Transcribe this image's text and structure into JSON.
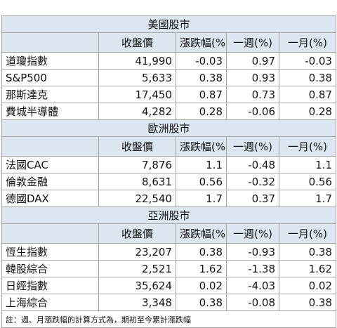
{
  "sections": [
    {
      "title": "美國股市",
      "headers": [
        "收盤價",
        "漲跌幅(%)",
        "一週(%)",
        "一月(%)"
      ],
      "rows": [
        [
          "道瓊指數",
          "41,990",
          "-0.03",
          "0.97",
          "-0.03"
        ],
        [
          "S&P500",
          "5,633",
          "0.38",
          "0.93",
          "0.38"
        ],
        [
          "那斯達克",
          "17,450",
          "0.87",
          "0.73",
          "0.87"
        ],
        [
          "費城半導體",
          "4,282",
          "0.28",
          "-0.06",
          "0.28"
        ]
      ]
    },
    {
      "title": "歐洲股市",
      "headers": [
        "收盤價",
        "漲跌幅(%)",
        "一週(%)",
        "一月(%)"
      ],
      "rows": [
        [
          "法國CAC",
          "7,876",
          "1.1",
          "-0.48",
          "1.1"
        ],
        [
          "倫敦金融",
          "8,631",
          "0.56",
          "-0.32",
          "0.56"
        ],
        [
          "德國DAX",
          "22,540",
          "1.7",
          "0.37",
          "1.7"
        ]
      ]
    },
    {
      "title": "亞洲股市",
      "headers": [
        "收盤價",
        "漲跌幅(%)",
        "一週(%)",
        "一月(%)"
      ],
      "rows": [
        [
          "恆生指數",
          "23,207",
          "0.38",
          "-0.93",
          "0.38"
        ],
        [
          "韓股綜合",
          "2,521",
          "1.62",
          "-1.38",
          "1.62"
        ],
        [
          "日經指數",
          "35,624",
          "0.02",
          "-4.03",
          "0.02"
        ],
        [
          "上海綜合",
          "3,348",
          "0.38",
          "-0.08",
          "0.38"
        ]
      ]
    }
  ],
  "note": "註：週、月漲跌幅的計算方式為，期初至今累計漲跌幅"
}
